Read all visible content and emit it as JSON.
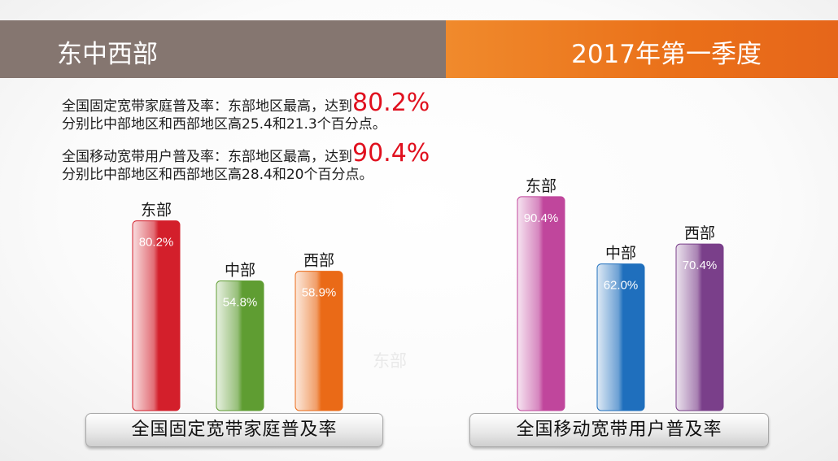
{
  "header": {
    "left_title": "东中西部",
    "right_title": "2017年第一季度"
  },
  "summary": [
    {
      "line1_text": "全国固定宽带家庭普及率：东部地区最高，达到",
      "highlight": "80.2%",
      "line2": "分别比中部地区和西部地区高25.4和21.3个百分点。"
    },
    {
      "line1_text": "全国移动宽带用户普及率：东部地区最高，达到",
      "highlight": "90.4%",
      "line2": "分别比中部地区和西部地区高28.4和20个百分点。"
    }
  ],
  "watermark": "东部",
  "colors": {
    "highlight": "#e0101e",
    "fixed": [
      "#d31f2b",
      "#5f9d32",
      "#ea6a17"
    ],
    "mobile": [
      "#c0469c",
      "#1f6fbd",
      "#7a3f8a"
    ]
  },
  "chart_data": [
    {
      "type": "bar",
      "title": "全国固定宽带家庭普及率",
      "categories": [
        "东部",
        "中部",
        "西部"
      ],
      "values": [
        80.2,
        54.8,
        58.9
      ],
      "value_labels": [
        "80.2%",
        "54.8%",
        "58.9%"
      ],
      "ylim": [
        0,
        100
      ]
    },
    {
      "type": "bar",
      "title": "全国移动宽带用户普及率",
      "categories": [
        "东部",
        "中部",
        "西部"
      ],
      "values": [
        90.4,
        62.0,
        70.4
      ],
      "value_labels": [
        "90.4%",
        "62.0%",
        "70.4%"
      ],
      "ylim": [
        0,
        100
      ]
    }
  ]
}
